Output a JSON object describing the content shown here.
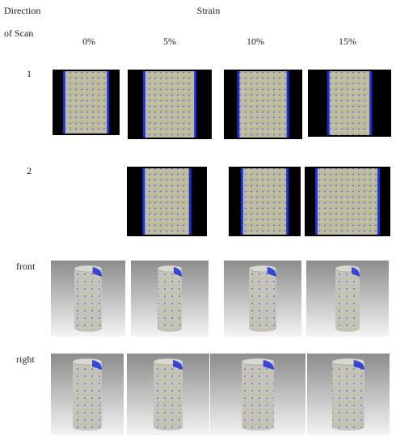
{
  "header": {
    "row_title": [
      "Direction",
      "of Scan"
    ],
    "column_title": "Strain"
  },
  "columns": [
    "0%",
    "5%",
    "10%",
    "15%"
  ],
  "rows": [
    {
      "label": "1"
    },
    {
      "label": "2"
    },
    {
      "label": "front"
    },
    {
      "label": "right"
    }
  ]
}
